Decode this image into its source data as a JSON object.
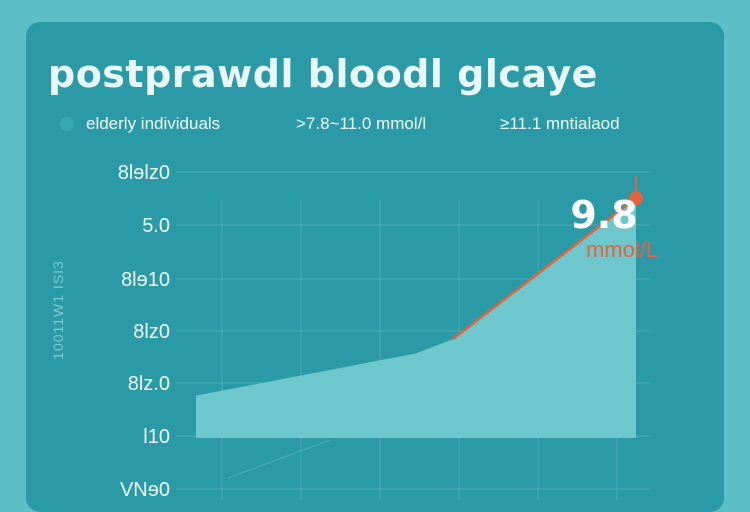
{
  "colors": {
    "background": "#5cbfc6",
    "card": "#2a9aa6",
    "area": "#6dc7cc",
    "line": "#e2633c",
    "text": "#eef9f9",
    "grid": "#6fc1c7"
  },
  "chart_data": {
    "type": "area",
    "title": "postprawdl bloodl glcaye",
    "legend_placement": "top",
    "legend": [
      "elderly individuals",
      ">7.8~11.0 mmol/l",
      "≥11.1 mntialaod"
    ],
    "ylabel": "10011W1 ISI3",
    "ytick_labels": [
      "8lɘlz0",
      "5.0",
      "8lɘ10",
      "8lz0",
      "8lz.0",
      "l10",
      "VNɘ0"
    ],
    "grid": true,
    "series": [
      {
        "x": [
          0,
          1,
          2,
          3,
          4,
          5,
          6,
          7,
          8,
          9,
          10,
          11,
          12
        ],
        "y": [
          4.2,
          4.4,
          4.6,
          4.8,
          5.0,
          5.2,
          5.4,
          5.8,
          6.6,
          7.4,
          8.2,
          9.0,
          9.8
        ]
      }
    ],
    "annotations": [
      {
        "value_label": "9.8",
        "unit_label": "mmol/L",
        "series_index": 0,
        "point_index": 12
      }
    ],
    "xlim": [
      0,
      12
    ],
    "ylim": [
      3.0,
      10.6
    ]
  }
}
